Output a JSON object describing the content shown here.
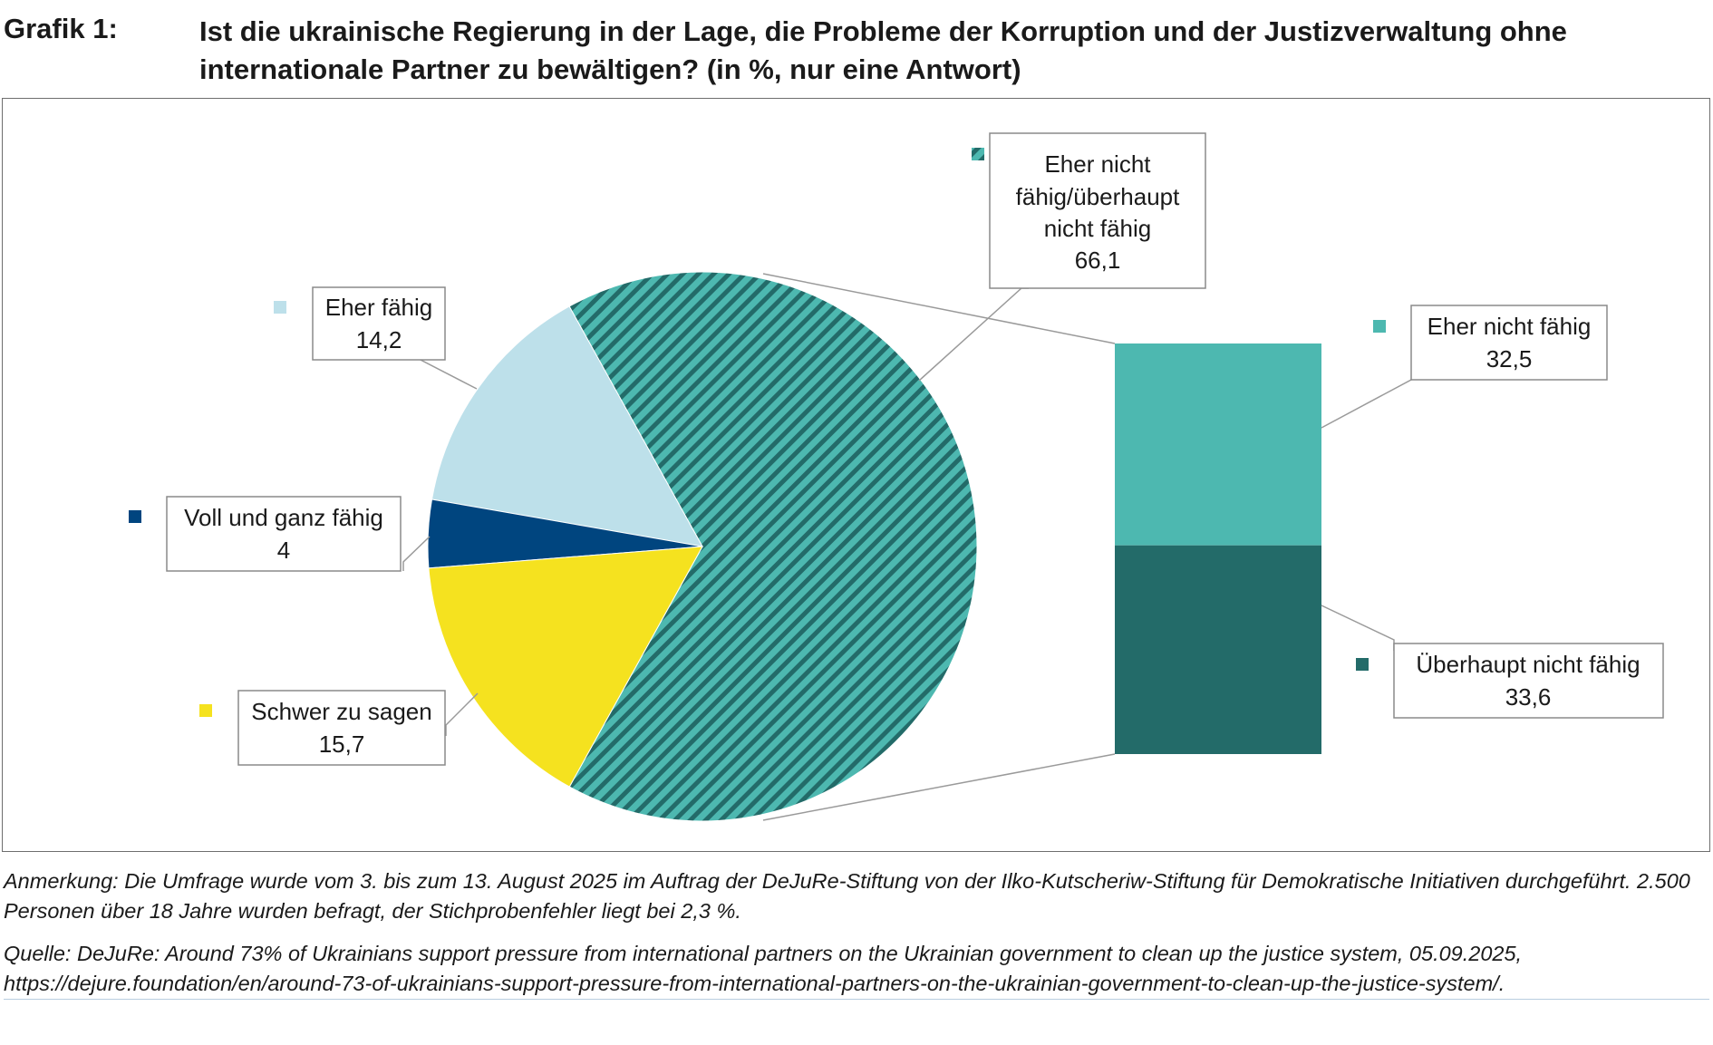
{
  "header": {
    "figure_label": "Grafik 1:",
    "title": "Ist die ukrainische Regierung in der Lage, die Probleme der Korruption und der Justizverwaltung ohne internationale Partner zu bewältigen? (in %, nur eine Antwort)"
  },
  "chart_data": {
    "type": "pie",
    "title": "Ist die ukrainische Regierung in der Lage, die Probleme der Korruption und der Justizverwaltung ohne internationale Partner zu bewältigen? (in %, nur eine Antwort)",
    "slices": [
      {
        "name": "Eher fähig",
        "value": 14.2,
        "display": "14,2",
        "color": "#bde0ea"
      },
      {
        "name": "Voll und ganz fähig",
        "value": 4,
        "display": "4",
        "color": "#00457f"
      },
      {
        "name": "Schwer zu sagen",
        "value": 15.7,
        "display": "15,7",
        "color": "#f5e21f"
      },
      {
        "name": "Eher nicht fähig/überhaupt nicht fähig",
        "value": 66.1,
        "display": "66,1",
        "color": "#4db8b0",
        "pattern": "diagonal-stripes",
        "exploded_to_bar": true
      }
    ],
    "breakdown": {
      "type": "stacked-bar",
      "parent": "Eher nicht fähig/überhaupt nicht fähig",
      "segments": [
        {
          "name": "Eher nicht fähig",
          "value": 32.5,
          "display": "32,5",
          "color": "#4db8b0"
        },
        {
          "name": "Überhaupt nicht fähig",
          "value": 33.6,
          "display": "33,6",
          "color": "#236b69"
        }
      ]
    },
    "legend": "labels with color markers next to slices"
  },
  "labels": {
    "eher_faehig": [
      "Eher fähig",
      "14,2"
    ],
    "voll": [
      "Voll und ganz fähig",
      "4"
    ],
    "schwer": [
      "Schwer zu sagen",
      "15,7"
    ],
    "nicht": [
      "Eher nicht",
      "fähig/überhaupt",
      "nicht fähig",
      "66,1"
    ],
    "eher_nicht": [
      "Eher nicht fähig",
      "32,5"
    ],
    "ueberhaupt": [
      "Überhaupt nicht fähig",
      "33,6"
    ]
  },
  "notes": {
    "anmerkung": "Anmerkung: Die Umfrage wurde vom 3. bis zum 13. August 2025 im Auftrag der DeJuRe-Stiftung von der Ilko-Kutscheriw-Stiftung für Demokratische Initiativen durchgeführt. 2.500 Personen über 18 Jahre wurden befragt, der Stichprobenfehler liegt bei 2,3 %.",
    "quelle": "Quelle: DeJuRe: Around 73% of Ukrainians support pressure from international partners on the Ukrainian government to clean up the justice system, 05.09.2025,",
    "url": "https://dejure.foundation/en/around-73-of-ukrainians-support-pressure-from-international-partners-on-the-ukrainian-government-to-clean-up-the-justice-system/."
  }
}
